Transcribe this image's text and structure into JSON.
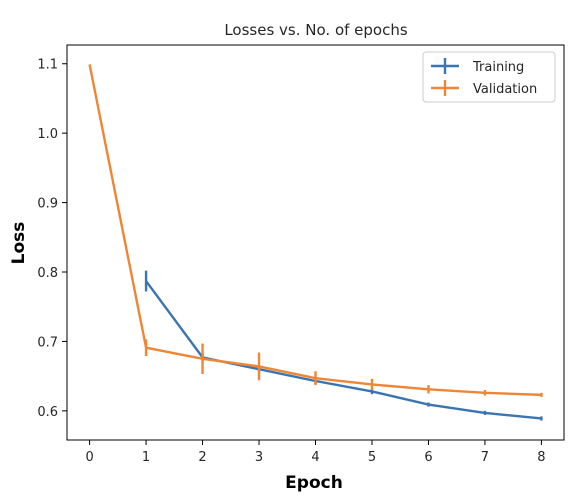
{
  "chart_data": {
    "type": "line",
    "title": "Losses vs. No. of epochs",
    "xlabel": "Epoch",
    "ylabel": "Loss",
    "xlim": [
      -0.4,
      8.4
    ],
    "ylim": [
      0.558,
      1.127
    ],
    "x_ticks": [
      0,
      1,
      2,
      3,
      4,
      5,
      6,
      7,
      8
    ],
    "x_tick_labels": [
      "0",
      "1",
      "2",
      "3",
      "4",
      "5",
      "6",
      "7",
      "8"
    ],
    "y_ticks": [
      0.6,
      0.7,
      0.8,
      0.9,
      1.0,
      1.1
    ],
    "y_tick_labels": [
      "0.6",
      "0.7",
      "0.8",
      "0.9",
      "1.0",
      "1.1"
    ],
    "grid": false,
    "legend_position": "top-right",
    "series": [
      {
        "name": "Training",
        "color": "#3b75af",
        "x": [
          1,
          2,
          3,
          4,
          5,
          6,
          7,
          8
        ],
        "values": [
          0.787,
          0.677,
          0.66,
          0.643,
          0.628,
          0.609,
          0.597,
          0.589
        ],
        "errors": [
          0.015,
          0.005,
          0.004,
          0.004,
          0.004,
          0.003,
          0.003,
          0.003
        ]
      },
      {
        "name": "Validation",
        "color": "#ef8636",
        "x": [
          0,
          1,
          2,
          3,
          4,
          5,
          6,
          7,
          8
        ],
        "values": [
          1.099,
          0.691,
          0.675,
          0.664,
          0.647,
          0.638,
          0.631,
          0.626,
          0.623
        ],
        "errors": [
          0,
          0.012,
          0.022,
          0.02,
          0.01,
          0.008,
          0.006,
          0.004,
          0.003
        ]
      }
    ]
  }
}
